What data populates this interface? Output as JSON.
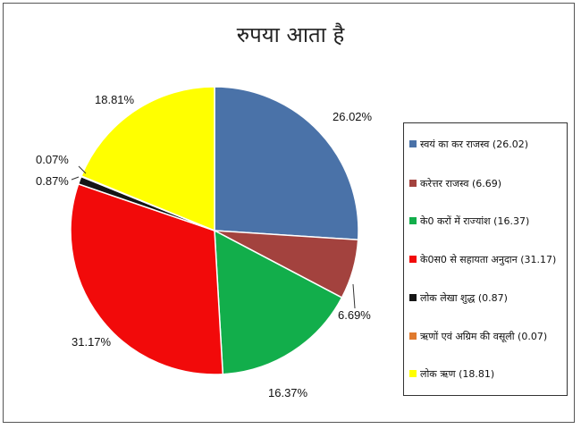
{
  "chart_data": {
    "type": "pie",
    "title": "रुपया आता है",
    "slices": [
      {
        "label": "स्वयं का कर राजस्व (26.02)",
        "value": 26.02,
        "display": "26.02%",
        "color": "#4A72A8"
      },
      {
        "label": "करेत्तर राजस्व (6.69)",
        "value": 6.69,
        "display": "6.69%",
        "color": "#A3423E"
      },
      {
        "label": "के0 करों में राज्यांश (16.37)",
        "value": 16.37,
        "display": "16.37%",
        "color": "#12AE4B"
      },
      {
        "label": "के0स0 से सहायता अनुदान (31.17)",
        "value": 31.17,
        "display": "31.17%",
        "color": "#F20A0A"
      },
      {
        "label": "लोक लेखा शुद्ध (0.87)",
        "value": 0.87,
        "display": "0.87%",
        "color": "#151515"
      },
      {
        "label": "ऋणों एवं अग्रिम की वसूली (0.07)",
        "value": 0.07,
        "display": "0.07%",
        "color": "#E07A2E"
      },
      {
        "label": "लोक ऋण (18.81)",
        "value": 18.81,
        "display": "18.81%",
        "color": "#FFFF00"
      }
    ],
    "legend_position": "right"
  }
}
